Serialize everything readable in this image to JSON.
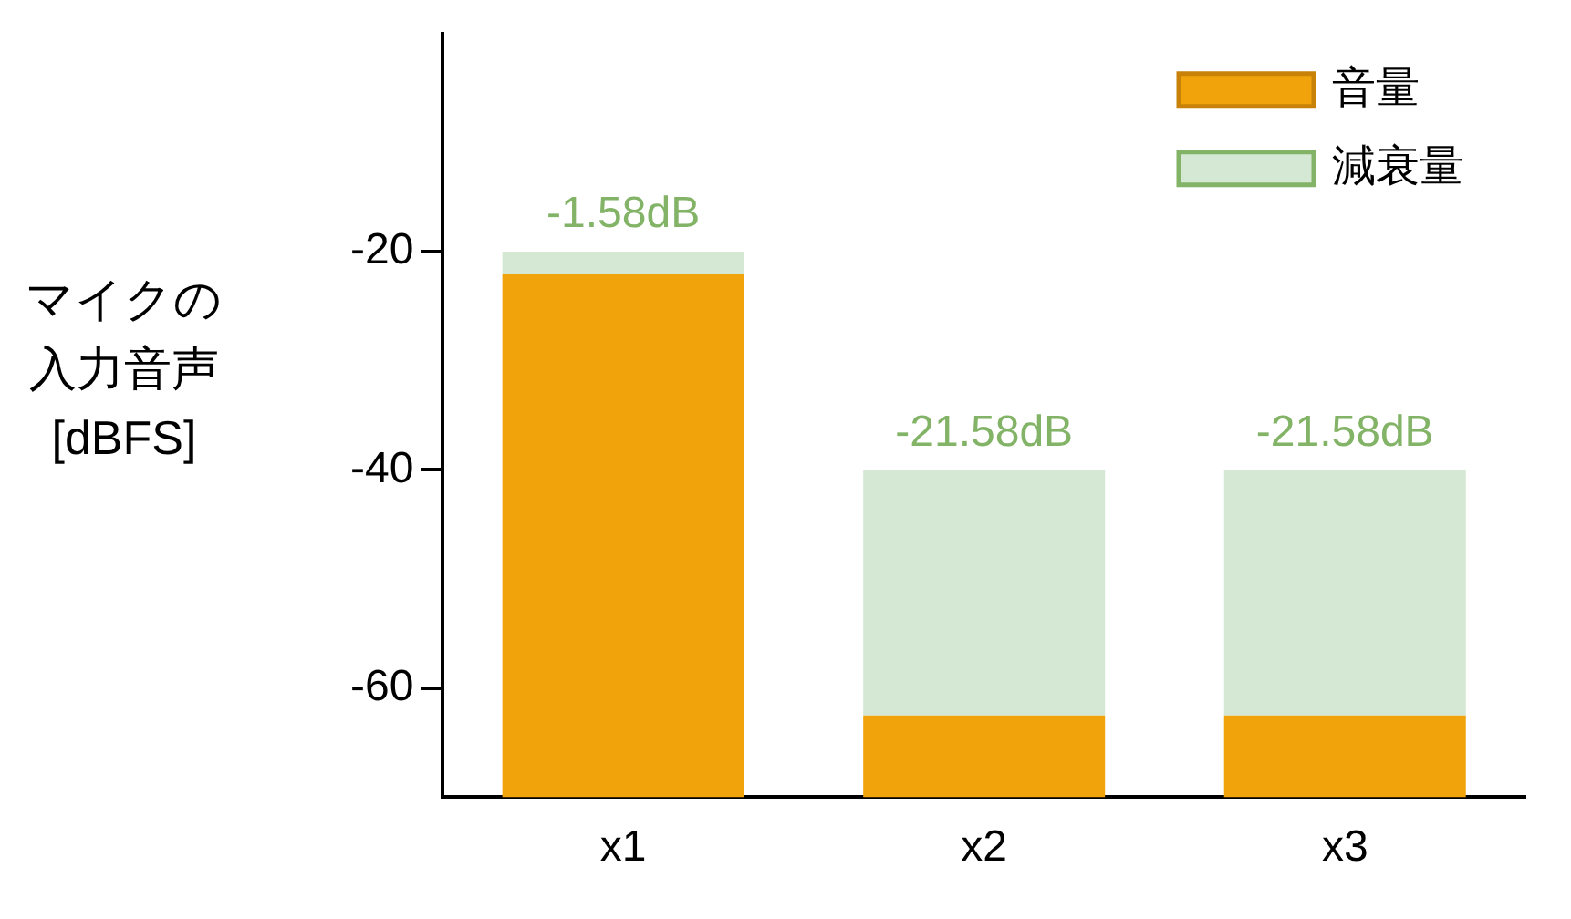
{
  "chart_data": {
    "type": "bar",
    "ylabel": "マイクの入力音声[dBFS]",
    "categories": [
      "x1",
      "x2",
      "x3"
    ],
    "series": [
      {
        "name": "音量",
        "color": "#f0a30a",
        "base": [
          -70,
          -70,
          -70
        ],
        "values": [
          48,
          7.5,
          7.5
        ]
      },
      {
        "name": "減衰量",
        "color": "#d5e8d4",
        "base": [
          -22,
          -62.5,
          -62.5
        ],
        "values": [
          2,
          22.5,
          22.5
        ]
      }
    ],
    "annotations": [
      {
        "text": "-1.58dB",
        "x": "x1",
        "y": -20
      },
      {
        "text": "-21.58dB",
        "x": "x2",
        "y": -40
      },
      {
        "text": "-21.58dB",
        "x": "x3",
        "y": -40
      }
    ],
    "ylim": [
      -70,
      0
    ],
    "yticks": [
      -20,
      -40,
      -60
    ],
    "grid": false,
    "legend": "top right"
  }
}
